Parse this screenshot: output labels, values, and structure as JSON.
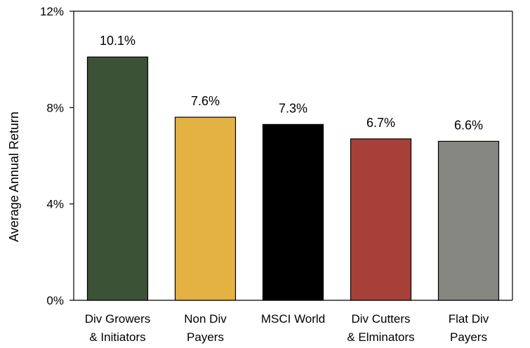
{
  "chart_data": {
    "type": "bar",
    "categories": [
      [
        "Div Growers",
        "& Initiators"
      ],
      [
        "Non Div",
        "Payers"
      ],
      [
        "MSCI World"
      ],
      [
        "Div Cutters",
        "& Elminators"
      ],
      [
        "Flat Div",
        "Payers"
      ]
    ],
    "values": [
      10.1,
      7.6,
      7.3,
      6.7,
      6.6
    ],
    "data_labels": [
      "10.1%",
      "7.6%",
      "7.3%",
      "6.7%",
      "6.6%"
    ],
    "bar_colors": [
      "#3b5237",
      "#e3b243",
      "#000000",
      "#a8403a",
      "#878781"
    ],
    "ylabel": "Average Annual Return",
    "yticks": [
      {
        "value": 0,
        "label": "0%"
      },
      {
        "value": 4,
        "label": "4%"
      },
      {
        "value": 8,
        "label": "8%"
      },
      {
        "value": 12,
        "label": "12%"
      }
    ],
    "ylim": [
      0,
      12
    ],
    "grid": false,
    "legend": "none"
  }
}
